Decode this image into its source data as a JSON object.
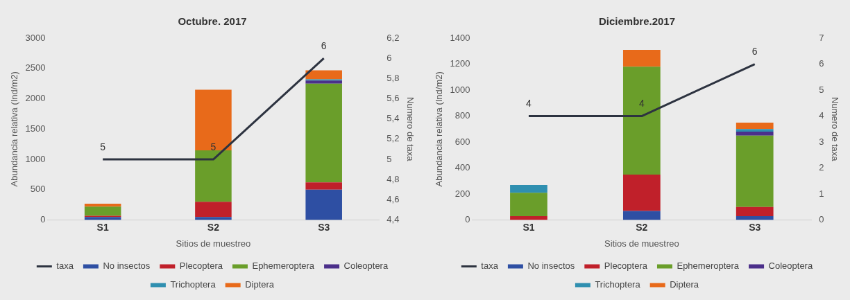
{
  "chart_data": [
    {
      "type": "bar",
      "title": "Octubre. 2017",
      "xlabel": "Sitios de muestreo",
      "ylabel": "Abundancia relativa (Ind/m2)",
      "y2label": "Numero de taxa",
      "categories": [
        "S1",
        "S2",
        "S3"
      ],
      "stacked": true,
      "legend": "bottom",
      "grid": false,
      "ylim": [
        0,
        3000
      ],
      "yticks": [
        0,
        500,
        1000,
        1500,
        2000,
        2500,
        3000
      ],
      "y2lim": [
        4.4,
        6.2
      ],
      "y2ticks": [
        {
          "value": 4.4,
          "label": "4,4"
        },
        {
          "value": 4.6,
          "label": "4,6"
        },
        {
          "value": 4.8,
          "label": "4,8"
        },
        5,
        {
          "value": 5.2,
          "label": "5,2"
        },
        {
          "value": 5.4,
          "label": "5,4"
        },
        {
          "value": 5.6,
          "label": "5,6"
        },
        {
          "value": 5.8,
          "label": "5,8"
        },
        6,
        {
          "value": 6.2,
          "label": "6,2"
        }
      ],
      "series": [
        {
          "name": "No insectos",
          "color": "#2e4fa3",
          "values": [
            50,
            50,
            500
          ]
        },
        {
          "name": "Plecoptera",
          "color": "#c0202a",
          "values": [
            20,
            250,
            120
          ]
        },
        {
          "name": "Ephemeroptera",
          "color": "#6a9e2a",
          "values": [
            150,
            850,
            1630
          ]
        },
        {
          "name": "Coleoptera",
          "color": "#4b2f8a",
          "values": [
            0,
            0,
            50
          ]
        },
        {
          "name": "Trichoptera",
          "color": "#2f8fb0",
          "values": [
            0,
            0,
            20
          ]
        },
        {
          "name": "Diptera",
          "color": "#e86a1a",
          "values": [
            50,
            1000,
            150
          ]
        },
        {
          "name": "taxa",
          "type": "line",
          "axis": "y2",
          "color": "#2d3340",
          "marker": "none",
          "values": [
            5,
            5,
            6
          ],
          "value_labels": [
            "5",
            "5",
            "6"
          ]
        }
      ]
    },
    {
      "type": "bar",
      "title": "Diciembre.2017",
      "xlabel": "Sitios de muestreo",
      "ylabel": "Abundancia relativa (Ind/m2)",
      "y2label": "Numero de taxa",
      "categories": [
        "S1",
        "S2",
        "S3"
      ],
      "stacked": true,
      "legend": "bottom",
      "grid": false,
      "ylim": [
        0,
        1400
      ],
      "yticks": [
        0,
        200,
        400,
        600,
        800,
        1000,
        1200,
        1400
      ],
      "y2lim": [
        0,
        7
      ],
      "y2ticks": [
        0,
        1,
        2,
        3,
        4,
        5,
        6,
        7
      ],
      "series": [
        {
          "name": "No insectos",
          "color": "#2e4fa3",
          "values": [
            0,
            70,
            30
          ]
        },
        {
          "name": "Plecoptera",
          "color": "#c0202a",
          "values": [
            30,
            280,
            70
          ]
        },
        {
          "name": "Ephemeroptera",
          "color": "#6a9e2a",
          "values": [
            180,
            830,
            550
          ]
        },
        {
          "name": "Coleoptera",
          "color": "#4b2f8a",
          "values": [
            0,
            0,
            30
          ]
        },
        {
          "name": "Trichoptera",
          "color": "#2f8fb0",
          "values": [
            60,
            0,
            20
          ]
        },
        {
          "name": "Diptera",
          "color": "#e86a1a",
          "values": [
            0,
            130,
            50
          ]
        },
        {
          "name": "taxa",
          "type": "line",
          "axis": "y2",
          "color": "#2d3340",
          "marker": "none",
          "values": [
            4,
            4,
            6
          ],
          "value_labels": [
            "4",
            "4",
            "6"
          ]
        }
      ]
    }
  ]
}
